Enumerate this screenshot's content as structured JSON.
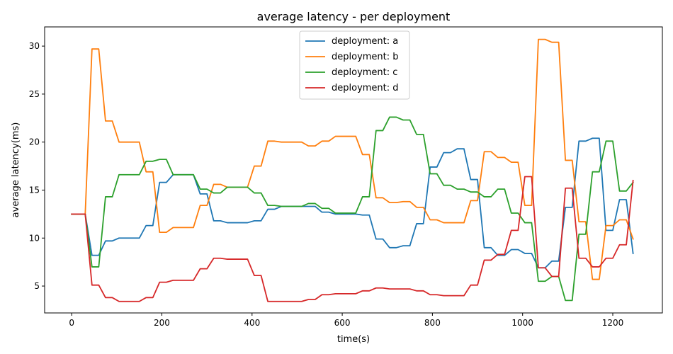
{
  "chart_data": {
    "type": "line",
    "title": "average latency - per deployment",
    "xlabel": "time(s)",
    "ylabel": "average latency(ms)",
    "xlim": [
      -60,
      1310
    ],
    "ylim": [
      2.2,
      32.0
    ],
    "xticks": [
      0,
      200,
      400,
      600,
      800,
      1000,
      1200
    ],
    "yticks": [
      5,
      10,
      15,
      20,
      25,
      30
    ],
    "grid": false,
    "legend_position": "top-center",
    "x": [
      0,
      30,
      45,
      60,
      75,
      90,
      105,
      120,
      135,
      150,
      165,
      180,
      195,
      210,
      225,
      240,
      255,
      270,
      285,
      300,
      315,
      330,
      345,
      360,
      375,
      390,
      405,
      420,
      435,
      450,
      465,
      480,
      495,
      510,
      525,
      540,
      555,
      570,
      585,
      600,
      615,
      630,
      645,
      660,
      675,
      690,
      705,
      720,
      735,
      750,
      765,
      780,
      795,
      810,
      825,
      840,
      855,
      870,
      885,
      900,
      915,
      930,
      945,
      960,
      975,
      990,
      1005,
      1020,
      1035,
      1050,
      1065,
      1080,
      1095,
      1110,
      1125,
      1140,
      1155,
      1170,
      1185,
      1200,
      1215,
      1230,
      1245
    ],
    "series": [
      {
        "name": "deployment: a",
        "color": "#1f77b4",
        "values": [
          12.5,
          12.5,
          8.2,
          8.2,
          9.7,
          9.7,
          10.0,
          10.0,
          10.0,
          10.0,
          11.3,
          11.3,
          15.8,
          15.8,
          16.6,
          16.6,
          16.6,
          16.6,
          14.6,
          14.6,
          11.8,
          11.8,
          11.6,
          11.6,
          11.6,
          11.6,
          11.8,
          11.8,
          13.0,
          13.0,
          13.3,
          13.3,
          13.3,
          13.3,
          13.3,
          13.3,
          12.7,
          12.7,
          12.5,
          12.5,
          12.5,
          12.5,
          12.4,
          12.4,
          9.9,
          9.9,
          9.0,
          9.0,
          9.2,
          9.2,
          11.5,
          11.5,
          17.4,
          17.4,
          18.9,
          18.9,
          19.3,
          19.3,
          16.1,
          16.1,
          9.0,
          9.0,
          8.2,
          8.2,
          8.8,
          8.8,
          8.4,
          8.4,
          6.9,
          6.9,
          7.6,
          7.6,
          13.2,
          13.2,
          20.1,
          20.1,
          20.4,
          20.4,
          10.8,
          10.8,
          14.0,
          14.0,
          8.4
        ]
      },
      {
        "name": "deployment: b",
        "color": "#ff7f0e",
        "values": [
          12.5,
          12.5,
          29.7,
          29.7,
          22.2,
          22.2,
          20.0,
          20.0,
          20.0,
          20.0,
          16.9,
          16.9,
          10.6,
          10.6,
          11.1,
          11.1,
          11.1,
          11.1,
          13.4,
          13.4,
          15.6,
          15.6,
          15.3,
          15.3,
          15.3,
          15.3,
          17.5,
          17.5,
          20.1,
          20.1,
          20.0,
          20.0,
          20.0,
          20.0,
          19.6,
          19.6,
          20.1,
          20.1,
          20.6,
          20.6,
          20.6,
          20.6,
          18.7,
          18.7,
          14.2,
          14.2,
          13.7,
          13.7,
          13.8,
          13.8,
          13.2,
          13.2,
          11.9,
          11.9,
          11.6,
          11.6,
          11.6,
          11.6,
          13.9,
          13.9,
          19.0,
          19.0,
          18.4,
          18.4,
          17.9,
          17.9,
          13.4,
          13.4,
          30.7,
          30.7,
          30.4,
          30.4,
          18.1,
          18.1,
          11.7,
          11.7,
          5.7,
          5.7,
          11.3,
          11.3,
          11.9,
          11.9,
          9.9
        ]
      },
      {
        "name": "deployment: c",
        "color": "#2ca02c",
        "values": [
          12.5,
          12.5,
          7.0,
          7.0,
          14.3,
          14.3,
          16.6,
          16.6,
          16.6,
          16.6,
          18.0,
          18.0,
          18.2,
          18.2,
          16.6,
          16.6,
          16.6,
          16.6,
          15.1,
          15.1,
          14.7,
          14.7,
          15.3,
          15.3,
          15.3,
          15.3,
          14.7,
          14.7,
          13.4,
          13.4,
          13.3,
          13.3,
          13.3,
          13.3,
          13.6,
          13.6,
          13.1,
          13.1,
          12.6,
          12.6,
          12.6,
          12.6,
          14.3,
          14.3,
          21.2,
          21.2,
          22.6,
          22.6,
          22.3,
          22.3,
          20.8,
          20.8,
          16.7,
          16.7,
          15.5,
          15.5,
          15.1,
          15.1,
          14.8,
          14.8,
          14.3,
          14.3,
          15.1,
          15.1,
          12.6,
          12.6,
          11.6,
          11.6,
          5.5,
          5.5,
          6.0,
          6.0,
          3.5,
          3.5,
          10.4,
          10.4,
          16.9,
          16.9,
          20.1,
          20.1,
          14.9,
          14.9,
          15.8
        ]
      },
      {
        "name": "deployment: d",
        "color": "#d62728",
        "values": [
          12.5,
          12.5,
          5.1,
          5.1,
          3.8,
          3.8,
          3.4,
          3.4,
          3.4,
          3.4,
          3.8,
          3.8,
          5.4,
          5.4,
          5.6,
          5.6,
          5.6,
          5.6,
          6.8,
          6.8,
          7.9,
          7.9,
          7.8,
          7.8,
          7.8,
          7.8,
          6.1,
          6.1,
          3.4,
          3.4,
          3.4,
          3.4,
          3.4,
          3.4,
          3.6,
          3.6,
          4.1,
          4.1,
          4.2,
          4.2,
          4.2,
          4.2,
          4.5,
          4.5,
          4.8,
          4.8,
          4.7,
          4.7,
          4.7,
          4.7,
          4.5,
          4.5,
          4.1,
          4.1,
          4.0,
          4.0,
          4.0,
          4.0,
          5.1,
          5.1,
          7.7,
          7.7,
          8.3,
          8.3,
          10.8,
          10.8,
          16.4,
          16.4,
          6.9,
          6.9,
          6.0,
          6.0,
          15.2,
          15.2,
          7.9,
          7.9,
          7.0,
          7.0,
          7.9,
          7.9,
          9.3,
          9.3,
          16.0
        ]
      }
    ]
  }
}
